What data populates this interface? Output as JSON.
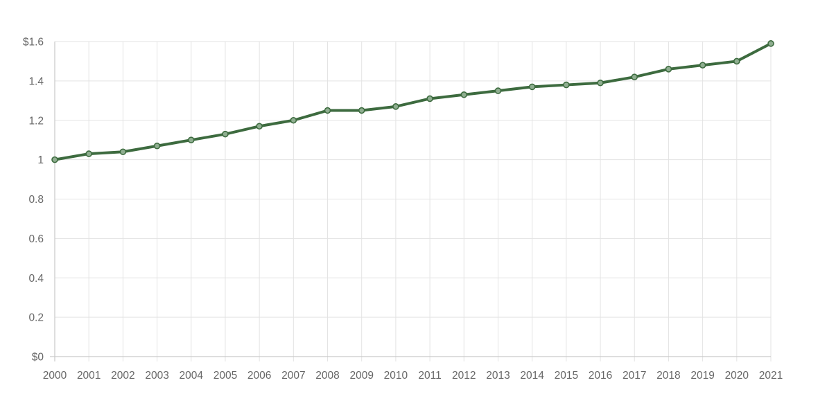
{
  "chart_data": {
    "type": "line",
    "x": [
      "2000",
      "2001",
      "2002",
      "2003",
      "2004",
      "2005",
      "2006",
      "2007",
      "2008",
      "2009",
      "2010",
      "2011",
      "2012",
      "2013",
      "2014",
      "2015",
      "2016",
      "2017",
      "2018",
      "2019",
      "2020",
      "2021"
    ],
    "series": [
      {
        "values": [
          1.0,
          1.03,
          1.04,
          1.07,
          1.1,
          1.13,
          1.17,
          1.2,
          1.25,
          1.25,
          1.27,
          1.31,
          1.33,
          1.35,
          1.37,
          1.38,
          1.39,
          1.42,
          1.46,
          1.48,
          1.5,
          1.59
        ]
      }
    ],
    "y_ticks": [
      {
        "value": 0,
        "label": "$0"
      },
      {
        "value": 0.2,
        "label": "0.2"
      },
      {
        "value": 0.4,
        "label": "0.4"
      },
      {
        "value": 0.6,
        "label": "0.6"
      },
      {
        "value": 0.8,
        "label": "0.8"
      },
      {
        "value": 1,
        "label": "1"
      },
      {
        "value": 1.2,
        "label": "1.2"
      },
      {
        "value": 1.4,
        "label": "1.4"
      },
      {
        "value": 1.6,
        "label": "$1.6"
      }
    ],
    "ylim": [
      0,
      1.6
    ],
    "title": "",
    "xlabel": "",
    "ylabel": "",
    "grid": true,
    "legend": "none"
  },
  "colors": {
    "line": "#3d6b3f",
    "marker_fill": "#8fae90",
    "marker_stroke": "#3d6b3f"
  }
}
